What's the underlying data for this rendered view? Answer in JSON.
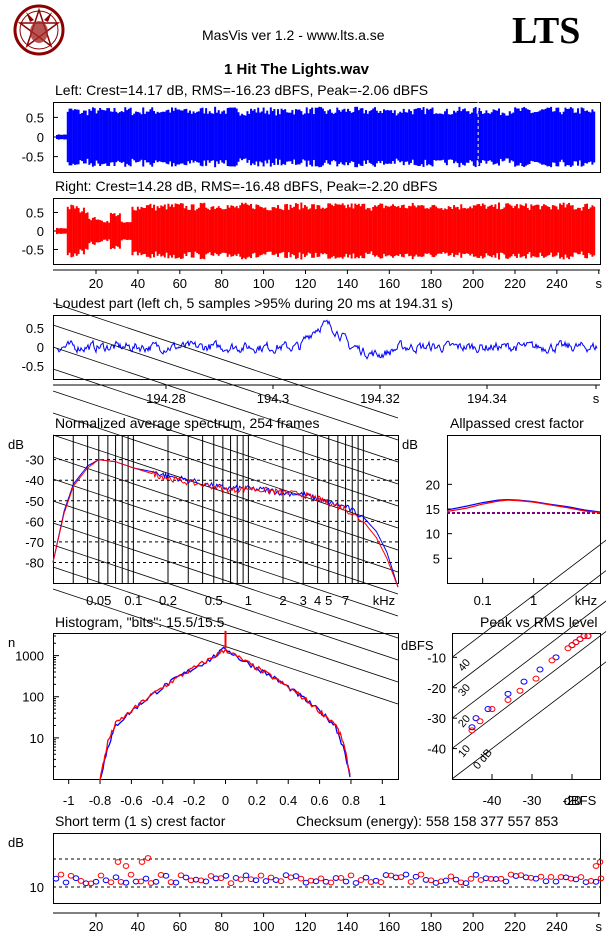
{
  "header": {
    "app_title": "MasVis ver 1.2 - www.lts.a.se",
    "logo_text": "LTS",
    "file_title": "1 Hit The Lights.wav"
  },
  "colors": {
    "left": "#0000ff",
    "right": "#ff0000",
    "crest_line": "#800080",
    "grid": "#000000"
  },
  "chart_data": [
    {
      "id": "left-waveform",
      "type": "area",
      "title": "Left: Crest=14.17 dB, RMS=-16.23 dBFS, Peak=-2.06 dBFS",
      "y_ticks": [
        "0.5",
        "0",
        "-0.5"
      ],
      "ylim": [
        -1,
        1
      ],
      "xlim": [
        0,
        250
      ],
      "marker_x": 194.31,
      "series": [
        {
          "values": [
            0.08,
            0.9,
            0.85,
            0.9,
            0.88,
            0.9,
            0.9,
            0.85,
            0.9,
            0.88,
            0.9,
            0.9,
            0.85,
            0.9,
            0.9,
            0.88,
            0.9,
            0.85,
            0.9,
            0.9,
            0.85,
            0.9,
            0.88,
            0.9,
            0.9,
            0.85,
            0.9,
            0.9,
            0.88,
            0.9,
            0.9,
            0.85,
            0.9,
            0.88,
            0.9,
            0.9,
            0.85,
            0.9,
            0.9,
            0.88,
            0.9,
            0.85,
            0.9,
            0.9,
            0.85,
            0.9,
            0.88,
            0.9,
            0.9,
            0.85
          ]
        }
      ]
    },
    {
      "id": "right-waveform",
      "type": "area",
      "title": "Right: Crest=14.28 dB, RMS=-16.48 dBFS, Peak=-2.20 dBFS",
      "y_ticks": [
        "0.5",
        "0",
        "-0.5"
      ],
      "ylim": [
        -1,
        1
      ],
      "xlim": [
        0,
        250
      ],
      "x_ticks": [
        "20",
        "40",
        "60",
        "80",
        "100",
        "120",
        "140",
        "160",
        "180",
        "200",
        "220",
        "240",
        "s"
      ],
      "series": [
        {
          "values": [
            0.1,
            0.85,
            0.75,
            0.45,
            0.35,
            0.6,
            0.3,
            0.85,
            0.9,
            0.85,
            0.88,
            0.9,
            0.85,
            0.9,
            0.88,
            0.9,
            0.85,
            0.9,
            0.9,
            0.85,
            0.9,
            0.88,
            0.9,
            0.9,
            0.85,
            0.9,
            0.88,
            0.9,
            0.9,
            0.85,
            0.9,
            0.9,
            0.88,
            0.9,
            0.9,
            0.85,
            0.9,
            0.88,
            0.9,
            0.9,
            0.85,
            0.9,
            0.9,
            0.88,
            0.9,
            0.85,
            0.9,
            0.9,
            0.85,
            0.9
          ]
        }
      ]
    },
    {
      "id": "loudest-part",
      "type": "line",
      "title": "Loudest part (left  ch, 5 samples >95% during 20 ms at 194.31 s)",
      "y_ticks": [
        "0.5",
        "0",
        "-0.5"
      ],
      "ylim": [
        -1,
        1
      ],
      "x_ticks": [
        "194.28",
        "194.3",
        "194.32",
        "194.34",
        "s"
      ]
    },
    {
      "id": "spectrum",
      "type": "line",
      "title": "Normalized average spectrum, 254 frames",
      "ylabel": "dB",
      "y_ticks": [
        "-30",
        "-40",
        "-50",
        "-60",
        "-70",
        "-80"
      ],
      "x_ticks": [
        "0.05",
        "0.1",
        "0.2",
        "0.5",
        "1",
        "2",
        "3",
        "4",
        "5",
        "7",
        "kHz"
      ],
      "x_kHz": [
        0.02,
        0.025,
        0.03,
        0.04,
        0.05,
        0.07,
        0.1,
        0.15,
        0.2,
        0.3,
        0.5,
        0.7,
        1,
        1.5,
        2,
        3,
        4,
        5,
        7,
        10,
        13,
        16,
        20
      ],
      "series": [
        {
          "name": "left",
          "values": [
            -80,
            -55,
            -42,
            -33,
            -30,
            -31,
            -34,
            -36,
            -38,
            -40,
            -43,
            -44,
            -44,
            -45,
            -46,
            -47,
            -49,
            -51,
            -53,
            -58,
            -65,
            -75,
            -92
          ]
        },
        {
          "name": "right",
          "values": [
            -80,
            -56,
            -43,
            -34,
            -30,
            -31,
            -34,
            -37,
            -39,
            -41,
            -43,
            -45,
            -44,
            -45,
            -46,
            -47,
            -49,
            -51,
            -54,
            -60,
            -68,
            -78,
            -92
          ]
        }
      ]
    },
    {
      "id": "allpassed-crest",
      "type": "line",
      "title": "Allpassed crest factor",
      "ylabel": "dB",
      "y_ticks": [
        "20",
        "15",
        "10",
        "5"
      ],
      "x_ticks": [
        "0.1",
        "1",
        "kHz"
      ],
      "x_kHz": [
        0.02,
        0.05,
        0.1,
        0.2,
        0.3,
        0.5,
        1,
        2,
        5,
        10,
        20
      ],
      "series": [
        {
          "name": "left",
          "values": [
            14.8,
            15.6,
            16.3,
            16.8,
            16.9,
            16.8,
            16.5,
            16.0,
            15.4,
            14.8,
            14.4
          ]
        },
        {
          "name": "right",
          "values": [
            14.5,
            15.2,
            16.0,
            16.6,
            16.8,
            16.7,
            16.4,
            15.9,
            15.2,
            14.6,
            14.3
          ]
        }
      ],
      "reference": 14.2
    },
    {
      "id": "histogram",
      "type": "line",
      "title": "Histogram, \"bits\": 15.5/15.5",
      "ylabel": "n",
      "y_ticks": [
        "1000",
        "100",
        "10"
      ],
      "x_ticks": [
        "-1",
        "-0.8",
        "-0.6",
        "-0.4",
        "-0.2",
        "0",
        "0.2",
        "0.4",
        "0.6",
        "0.8",
        "1"
      ],
      "x": [
        -0.8,
        -0.75,
        -0.7,
        -0.6,
        -0.5,
        -0.4,
        -0.3,
        -0.2,
        -0.1,
        0,
        0.1,
        0.2,
        0.3,
        0.4,
        0.5,
        0.6,
        0.7,
        0.75,
        0.8
      ],
      "series": [
        {
          "name": "left",
          "values": [
            1,
            6,
            20,
            45,
            90,
            170,
            300,
            500,
            800,
            1500,
            800,
            500,
            300,
            170,
            90,
            45,
            20,
            6,
            1
          ]
        },
        {
          "name": "right",
          "values": [
            1,
            8,
            22,
            45,
            92,
            170,
            300,
            500,
            820,
            1400,
            820,
            500,
            300,
            170,
            92,
            45,
            22,
            8,
            1
          ]
        }
      ]
    },
    {
      "id": "peak-vs-rms",
      "type": "scatter",
      "title": "Peak vs RMS level",
      "ylabel": "dBFS",
      "y_ticks": [
        "-10",
        "-20",
        "-30",
        "-40"
      ],
      "x_ticks": [
        "-40",
        "-30",
        "-20",
        "dBFS"
      ],
      "diagonal_labels": [
        "40",
        "30",
        "20",
        "10",
        "0 dB"
      ],
      "series": [
        {
          "name": "left",
          "x": [
            -45,
            -44,
            -41,
            -36,
            -32,
            -28,
            -24,
            -20,
            -19,
            -18,
            -17,
            -16
          ],
          "y": [
            -33,
            -30,
            -27,
            -22,
            -18,
            -14,
            -10,
            -6,
            -5,
            -4,
            -3,
            -3
          ]
        },
        {
          "name": "right",
          "x": [
            -45,
            -43,
            -40,
            -36,
            -33,
            -29,
            -25,
            -21,
            -20,
            -19,
            -18,
            -17,
            -16
          ],
          "y": [
            -34,
            -31,
            -27,
            -24,
            -21,
            -17,
            -11,
            -7,
            -6,
            -5,
            -4,
            -3,
            -3
          ]
        }
      ]
    },
    {
      "id": "short-term-crest",
      "type": "scatter",
      "title": "Short term (1 s) crest factor",
      "checksum": "Checksum (energy):   558 158 377 557 853",
      "ylabel": "dB",
      "y_ticks": [
        "10"
      ],
      "x_ticks": [
        "20",
        "40",
        "60",
        "80",
        "100",
        "120",
        "140",
        "160",
        "180",
        "200",
        "220",
        "240",
        "s"
      ]
    }
  ]
}
